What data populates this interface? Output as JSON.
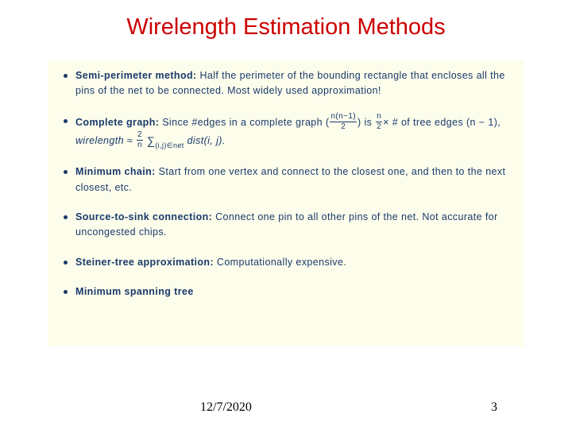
{
  "title": "Wirelength Estimation Methods",
  "items": [
    {
      "label": "Semi-perimeter method:",
      "text": "Half the perimeter of the bounding rectangle that encloses all the pins of the net to be connected.  Most widely used approximation!"
    },
    {
      "label": "Complete graph:",
      "text_before": "Since #edges in a complete graph (",
      "frac1_num": "n(n−1)",
      "frac1_den": "2",
      "text_mid1": ") is ",
      "frac2_num": "n",
      "frac2_den": "2",
      "text_mid2": "× # of tree edges (n − 1),  ",
      "wl_word": "wirelength",
      "approx": " ≈ ",
      "frac3_num": "2",
      "frac3_den": "n",
      "sum_sub": "(i,j)∈net",
      "dist": " dist(i, j)."
    },
    {
      "label": "Minimum chain:",
      "text": "Start from one vertex and connect to the closest one, and then to the next closest, etc."
    },
    {
      "label": "Source-to-sink connection:",
      "text": "Connect one pin to all other pins of the net.  Not accurate for uncongested chips."
    },
    {
      "label": "Steiner-tree approximation:",
      "text": "Computationally expensive."
    },
    {
      "label": "Minimum spanning tree",
      "text": ""
    }
  ],
  "footer": {
    "date": "12/7/2020",
    "page": "3"
  },
  "colors": {
    "title": "#cc0000",
    "body_text": "#1a3a6a",
    "content_bg": "#fdfdec",
    "page_bg": "#ffffff"
  }
}
